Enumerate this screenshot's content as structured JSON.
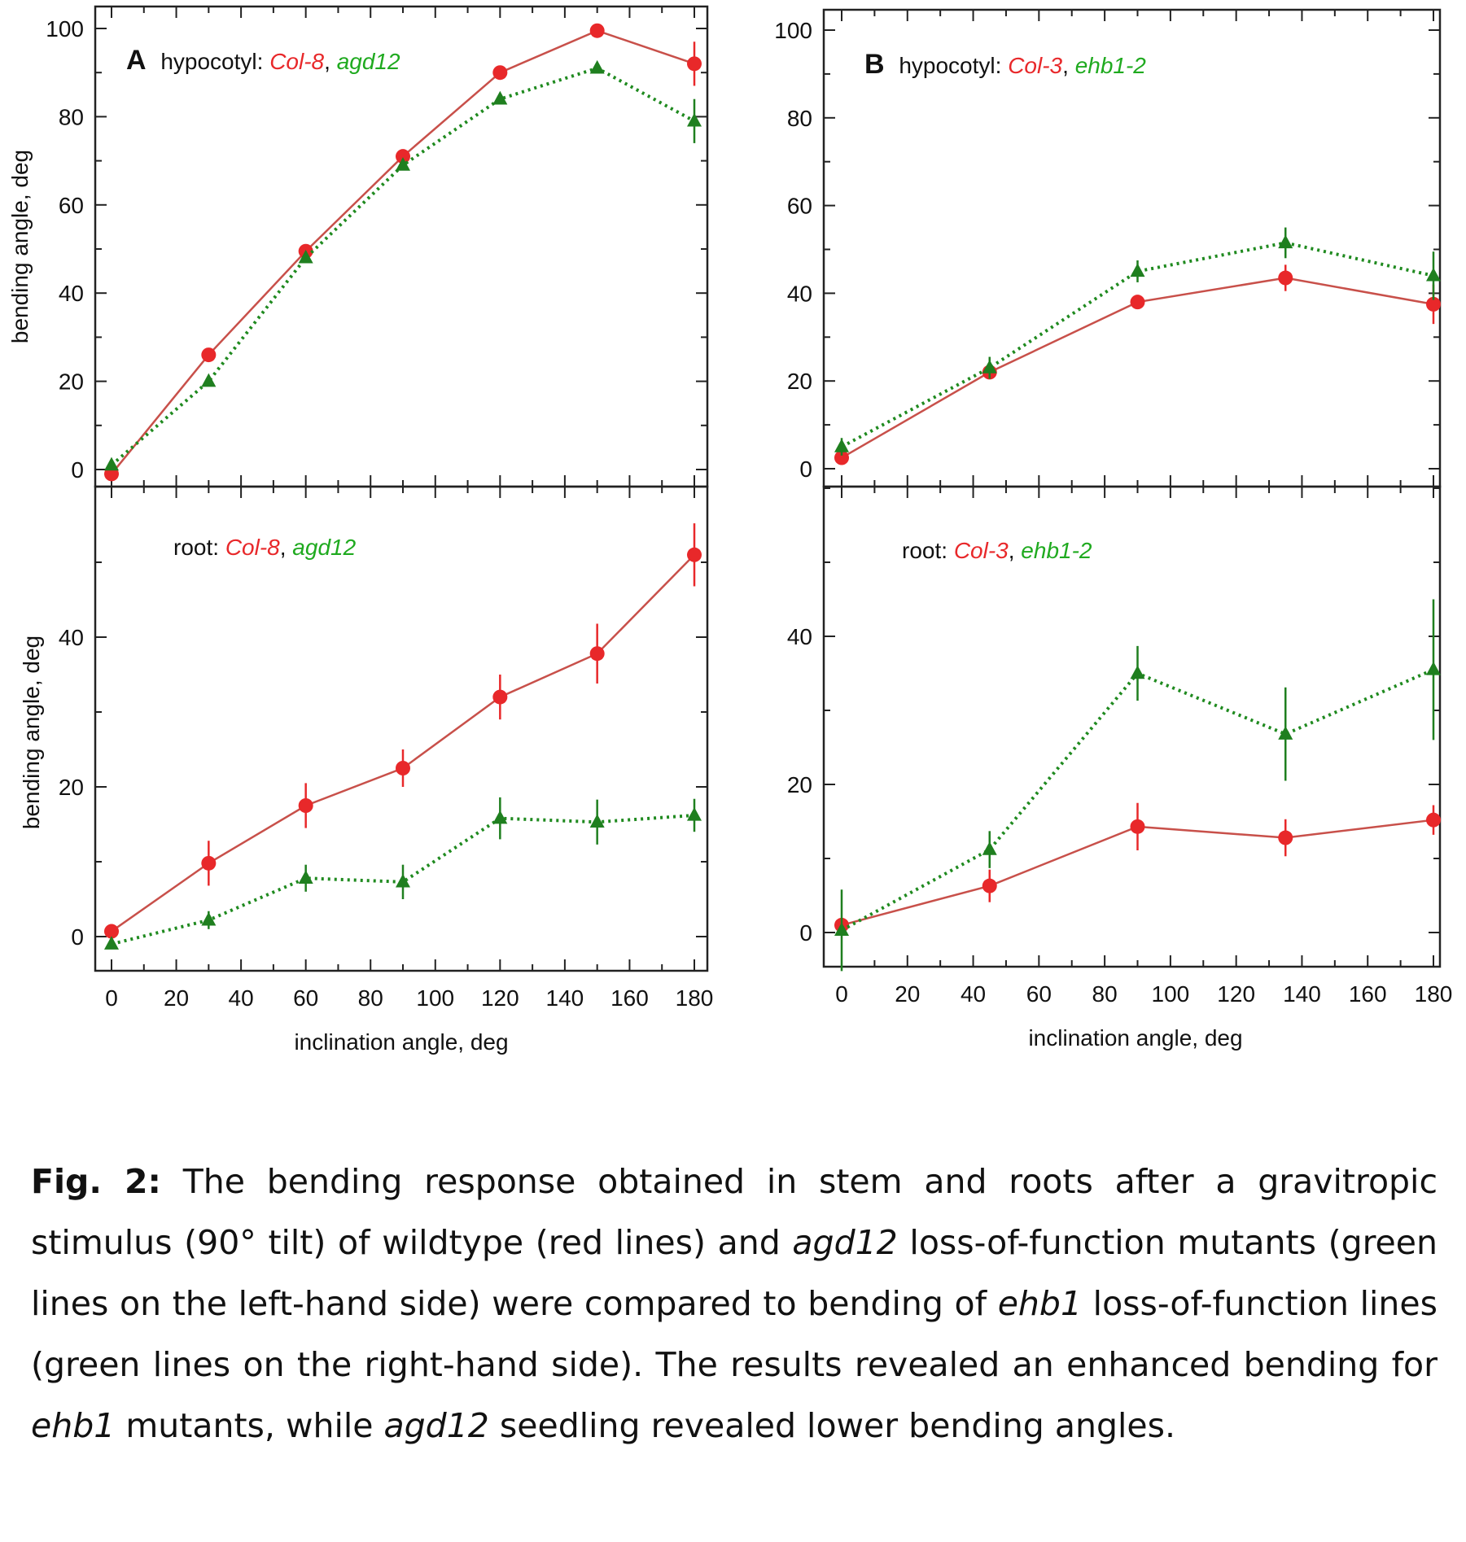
{
  "colors": {
    "wildtype": "#e8282a",
    "mutant": "#1f7f1f",
    "wildtype_line": "#c8504a",
    "mutant_line": "#1f8a1f",
    "axis": "#222222"
  },
  "panels": {
    "A": {
      "letter": "A",
      "xlabel": "inclination angle, deg",
      "xlim": [
        -5,
        185
      ],
      "xticks": [
        0,
        20,
        40,
        60,
        80,
        100,
        120,
        140,
        160,
        180
      ],
      "top": {
        "label_prefix": "hypocotyl: ",
        "label_wt": "Col-8",
        "label_sep": ", ",
        "label_mut": "agd12",
        "ylabel": "bending angle, deg",
        "ylim": [
          -3,
          105
        ],
        "yticks": [
          0,
          20,
          40,
          60,
          80,
          100
        ]
      },
      "bottom": {
        "label_prefix": "root: ",
        "label_wt": "Col-8",
        "label_sep": ", ",
        "label_mut": "agd12",
        "ylabel": "bending angle, deg",
        "ylim": [
          -5,
          60
        ],
        "yticks": [
          0,
          20,
          40
        ]
      }
    },
    "B": {
      "letter": "B",
      "xlabel": "inclination angle, deg",
      "xlim": [
        0,
        185
      ],
      "xticks": [
        0,
        20,
        40,
        60,
        80,
        100,
        120,
        140,
        160,
        180
      ],
      "top": {
        "label_prefix": "hypocotyl: ",
        "label_wt": "Col-3",
        "label_sep": ", ",
        "label_mut": "ehb1-2",
        "ylim": [
          -3,
          105
        ],
        "yticks": [
          0,
          20,
          40,
          60,
          80,
          100
        ]
      },
      "bottom": {
        "label_prefix": "root: ",
        "label_wt": "Col-3",
        "label_sep": ", ",
        "label_mut": "ehb1-2",
        "ylim": [
          -5,
          60
        ],
        "yticks": [
          0,
          20,
          40
        ]
      }
    }
  },
  "chart_data": [
    {
      "type": "line",
      "panel": "A-top",
      "title": "hypocotyl: Col-8, agd12",
      "ylabel": "bending angle, deg",
      "ylim": [
        -3,
        105
      ],
      "series": [
        {
          "name": "Col-8",
          "x": [
            0,
            30,
            60,
            90,
            120,
            150,
            180
          ],
          "y": [
            -1,
            26,
            49.5,
            71,
            90,
            99.5,
            92
          ],
          "err": [
            0,
            0,
            0,
            0,
            0,
            0,
            5
          ]
        },
        {
          "name": "agd12",
          "x": [
            0,
            30,
            60,
            90,
            120,
            150,
            180
          ],
          "y": [
            1,
            20,
            48,
            69,
            84,
            91,
            79
          ],
          "err": [
            0,
            0,
            0,
            0,
            0,
            0,
            5
          ]
        }
      ]
    },
    {
      "type": "line",
      "panel": "A-bottom",
      "title": "root: Col-8, agd12",
      "xlabel": "inclination angle, deg",
      "ylabel": "bending angle, deg",
      "ylim": [
        -5,
        60
      ],
      "series": [
        {
          "name": "Col-8",
          "x": [
            0,
            30,
            60,
            90,
            120,
            150,
            180
          ],
          "y": [
            0.7,
            9.8,
            17.5,
            22.5,
            32,
            37.8,
            51
          ],
          "err": [
            0,
            3,
            3,
            2.5,
            3,
            4,
            4.2
          ]
        },
        {
          "name": "agd12",
          "x": [
            0,
            30,
            60,
            90,
            120,
            150,
            180
          ],
          "y": [
            -1,
            2.2,
            7.8,
            7.3,
            15.8,
            15.3,
            16.2
          ],
          "err": [
            0,
            1.2,
            1.8,
            2.3,
            2.8,
            3,
            2.2
          ]
        }
      ]
    },
    {
      "type": "line",
      "panel": "B-top",
      "title": "hypocotyl: Col-3, ehb1-2",
      "ylim": [
        -3,
        105
      ],
      "series": [
        {
          "name": "Col-3",
          "x": [
            0,
            45,
            90,
            135,
            180
          ],
          "y": [
            2.5,
            22,
            38,
            43.5,
            37.5
          ],
          "err": [
            0,
            0,
            0,
            3,
            4.5
          ]
        },
        {
          "name": "ehb1-2",
          "x": [
            0,
            45,
            90,
            135,
            180
          ],
          "y": [
            5,
            23,
            45,
            51.5,
            44
          ],
          "err": [
            2,
            2.5,
            2.5,
            3.5,
            5.5
          ]
        }
      ]
    },
    {
      "type": "line",
      "panel": "B-bottom",
      "title": "root: Col-3, ehb1-2",
      "xlabel": "inclination angle, deg",
      "ylim": [
        -5,
        60
      ],
      "series": [
        {
          "name": "Col-3",
          "x": [
            0,
            45,
            90,
            135,
            180
          ],
          "y": [
            1,
            6.3,
            14.3,
            12.8,
            15.2
          ],
          "err": [
            0,
            2.2,
            3.2,
            2.5,
            2
          ]
        },
        {
          "name": "ehb1-2",
          "x": [
            0,
            45,
            90,
            135,
            180
          ],
          "y": [
            0.3,
            11.2,
            35,
            26.8,
            35.5
          ],
          "err": [
            5.5,
            2.5,
            3.7,
            6.3,
            9.5
          ]
        }
      ]
    }
  ],
  "caption": {
    "fig_label": "Fig. 2:",
    "t1": " The bending response obtained in stem and roots after a gravitropic stimulus (90° tilt) of wildtype (red lines) and ",
    "i1": "agd12",
    "t2": " loss-of-function mutants (green lines on the left-hand side) were compared to bending of ",
    "i2": "ehb1",
    "t3": " loss-of-function lines (green lines on the right-hand side). The results revealed an enhanced bending for ",
    "i3": "ehb1",
    "t4": " mutants, while ",
    "i4": "agd12",
    "t5": " seedling revealed lower bending angles."
  }
}
